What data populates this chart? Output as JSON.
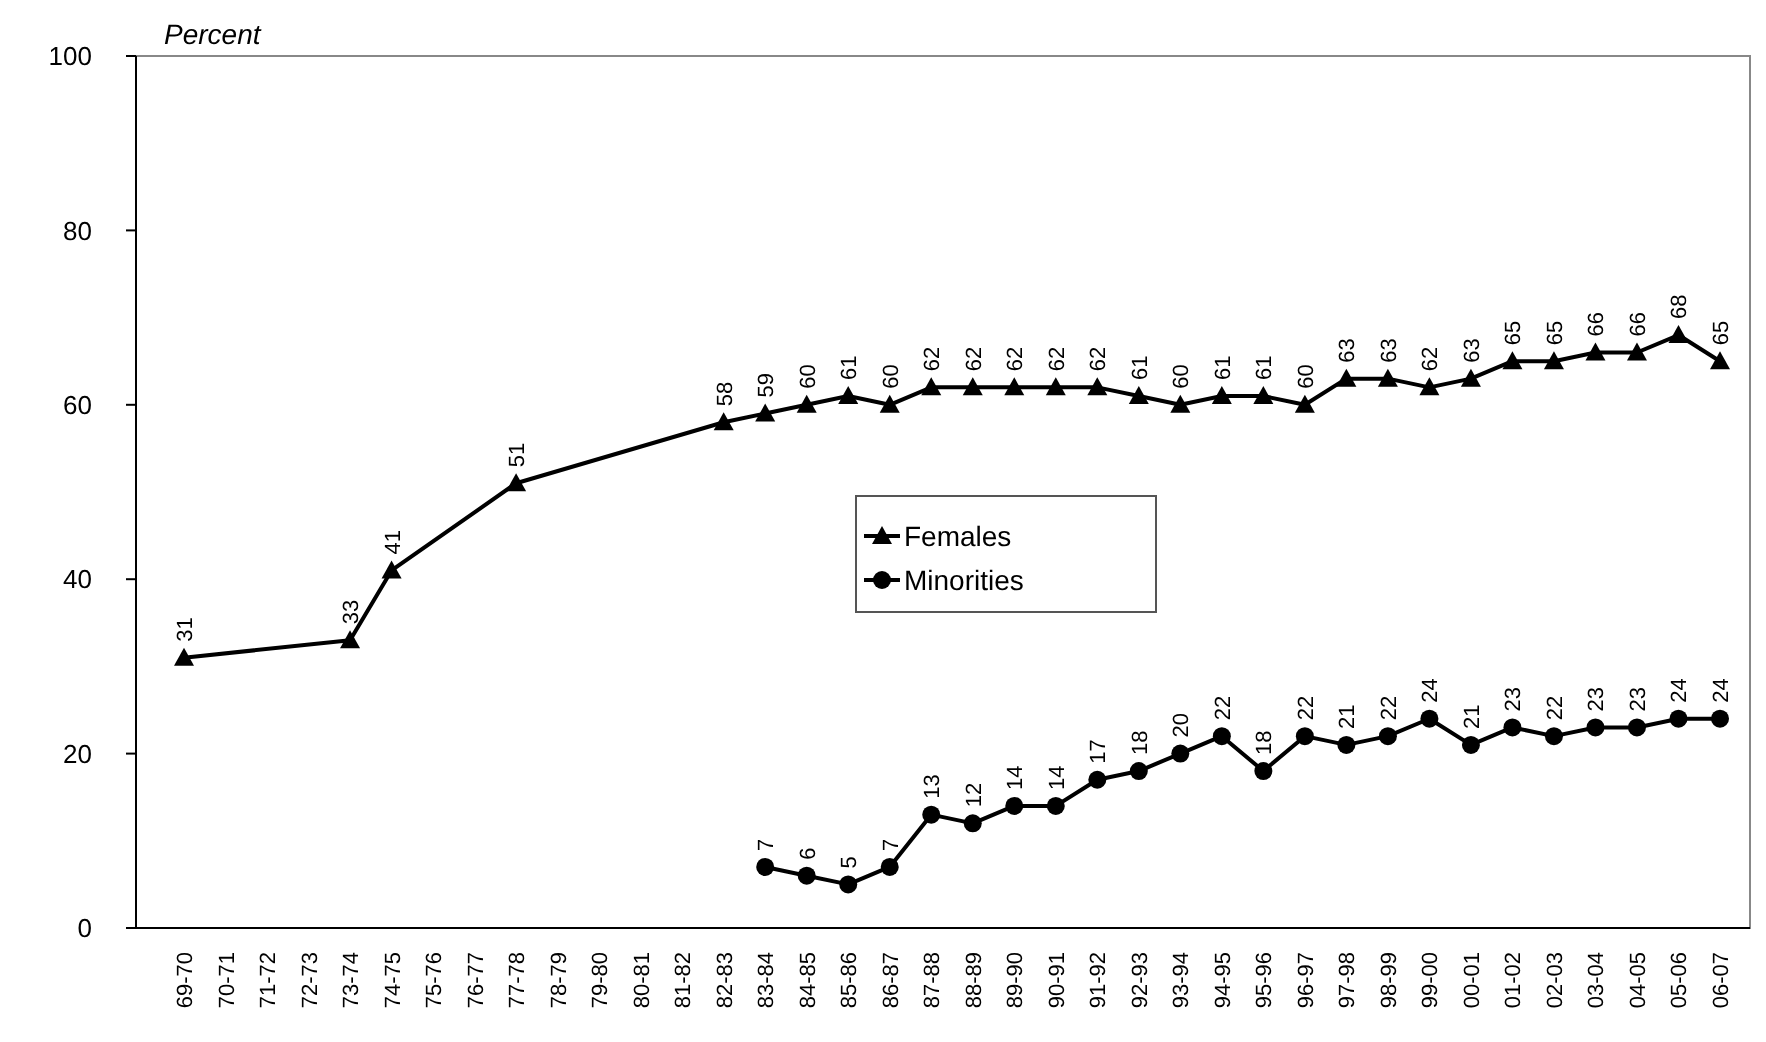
{
  "chart_data": {
    "type": "line",
    "ylabel": "Percent",
    "categories": [
      "69-70",
      "70-71",
      "71-72",
      "72-73",
      "73-74",
      "74-75",
      "75-76",
      "76-77",
      "77-78",
      "78-79",
      "79-80",
      "80-81",
      "81-82",
      "82-83",
      "83-84",
      "84-85",
      "85-86",
      "86-87",
      "87-88",
      "88-89",
      "89-90",
      "90-91",
      "91-92",
      "92-93",
      "93-94",
      "94-95",
      "95-96",
      "96-97",
      "97-98",
      "98-99",
      "99-00",
      "00-01",
      "01-02",
      "02-03",
      "03-04",
      "04-05",
      "05-06",
      "06-07"
    ],
    "series": [
      {
        "name": "Females",
        "color": "#000000",
        "marker": "triangle",
        "values": [
          31,
          null,
          null,
          null,
          33,
          41,
          null,
          null,
          51,
          null,
          null,
          null,
          null,
          58,
          59,
          60,
          61,
          60,
          62,
          62,
          62,
          62,
          62,
          61,
          60,
          61,
          61,
          60,
          63,
          63,
          62,
          63,
          65,
          65,
          66,
          66,
          68,
          65
        ]
      },
      {
        "name": "Minorities",
        "color": "#000000",
        "marker": "circle",
        "values": [
          null,
          null,
          null,
          null,
          null,
          null,
          null,
          null,
          null,
          null,
          null,
          null,
          null,
          null,
          7,
          6,
          5,
          7,
          13,
          12,
          14,
          14,
          17,
          18,
          20,
          22,
          18,
          22,
          21,
          22,
          24,
          21,
          23,
          22,
          23,
          23,
          24,
          24
        ]
      }
    ],
    "ylim": [
      0,
      100
    ],
    "yticks": [
      0,
      20,
      40,
      60,
      80,
      100
    ],
    "grid": false,
    "legend": "center",
    "data_labels": true,
    "line_style": "solid"
  }
}
